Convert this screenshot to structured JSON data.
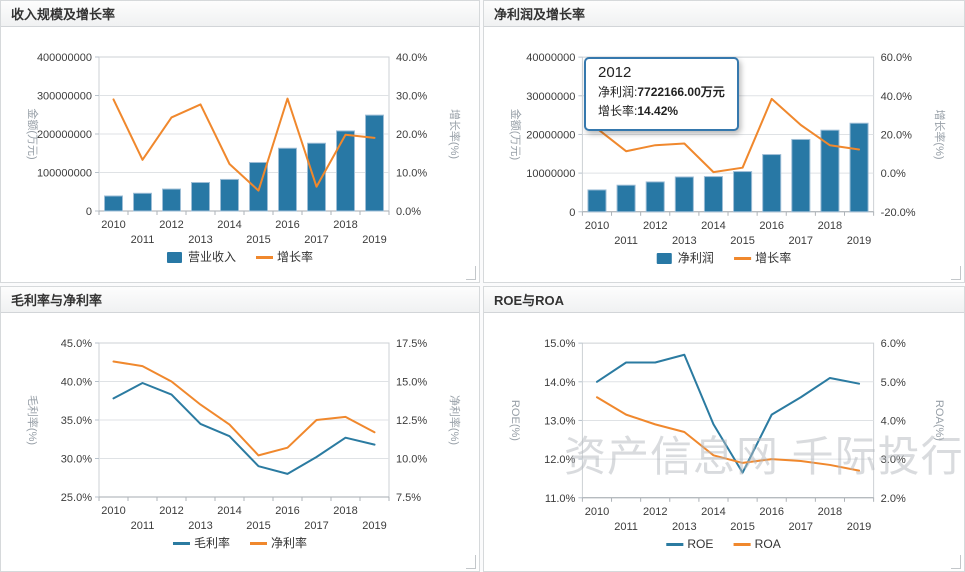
{
  "watermark": "资产信息网 千际投行",
  "colors": {
    "bar_blue": "#2878a5",
    "line_blue": "#2b7ba1",
    "line_orange": "#f0882d",
    "tooltip_border": "#3578ad"
  },
  "chart_data": [
    {
      "type": "combo",
      "title": "收入规模及增长率",
      "categories": [
        "2010",
        "2011",
        "2012",
        "2013",
        "2014",
        "2015",
        "2016",
        "2017",
        "2018",
        "2019"
      ],
      "left_axis": {
        "title": "金额(万元)",
        "min": 0,
        "max": 400000000,
        "tick_labels": [
          "0",
          "100000000",
          "200000000",
          "300000000",
          "400000000"
        ]
      },
      "right_axis": {
        "title": "增长率(%)",
        "min": 0,
        "max": 40,
        "tick_labels": [
          "0.0%",
          "10.0%",
          "20.0%",
          "30.0%",
          "40.0%"
        ]
      },
      "series": [
        {
          "name": "营业收入",
          "type": "bar",
          "axis": "left",
          "color": "#2878a5",
          "values": [
            39000000,
            46000000,
            57000000,
            74000000,
            82000000,
            126000000,
            163000000,
            176000000,
            208000000,
            249000000
          ]
        },
        {
          "name": "增长率",
          "type": "line",
          "axis": "right",
          "color": "#f0882d",
          "values": [
            29.0,
            13.3,
            24.3,
            27.7,
            12.2,
            5.3,
            29.2,
            6.3,
            19.8,
            19.0
          ]
        }
      ],
      "legend_position": "bottom",
      "grid": true
    },
    {
      "type": "combo",
      "title": "净利润及增长率",
      "categories": [
        "2010",
        "2011",
        "2012",
        "2013",
        "2014",
        "2015",
        "2016",
        "2017",
        "2018",
        "2019"
      ],
      "left_axis": {
        "title": "金额(万元)",
        "min": 0,
        "max": 40000000,
        "tick_labels": [
          "0",
          "10000000",
          "20000000",
          "30000000",
          "40000000"
        ]
      },
      "right_axis": {
        "title": "增长率(%)",
        "min": -20,
        "max": 60,
        "tick_labels": [
          "-20.0%",
          "0.0%",
          "20.0%",
          "40.0%",
          "60.0%"
        ]
      },
      "series": [
        {
          "name": "净利润",
          "type": "bar",
          "axis": "left",
          "color": "#2878a5",
          "values": [
            5650000,
            6870000,
            7722166,
            9000000,
            9100000,
            10400000,
            14800000,
            18700000,
            21100000,
            22900000
          ]
        },
        {
          "name": "增长率",
          "type": "line",
          "axis": "right",
          "color": "#f0882d",
          "values": [
            23.1,
            11.3,
            14.42,
            15.3,
            0.5,
            2.8,
            38.4,
            24.9,
            14.4,
            12.2
          ]
        }
      ],
      "tooltip": {
        "title": "2012",
        "rows": [
          {
            "label": "净利润:",
            "value": "7722166.00万元"
          },
          {
            "label": "增长率:",
            "value": "14.42%"
          }
        ]
      },
      "legend_position": "bottom",
      "grid": true
    },
    {
      "type": "line",
      "title": "毛利率与净利率",
      "categories": [
        "2010",
        "2011",
        "2012",
        "2013",
        "2014",
        "2015",
        "2016",
        "2017",
        "2018",
        "2019"
      ],
      "left_axis": {
        "title": "毛利率(%)",
        "min": 25,
        "max": 45,
        "tick_labels": [
          "25.0%",
          "30.0%",
          "35.0%",
          "40.0%",
          "45.0%"
        ]
      },
      "right_axis": {
        "title": "净利率(%)",
        "min": 7.5,
        "max": 17.5,
        "tick_labels": [
          "7.5%",
          "10.0%",
          "12.5%",
          "15.0%",
          "17.5%"
        ]
      },
      "series": [
        {
          "name": "毛利率",
          "type": "line",
          "axis": "left",
          "color": "#2b7ba1",
          "values": [
            37.8,
            39.8,
            38.3,
            34.5,
            32.9,
            29.0,
            28.0,
            30.2,
            32.7,
            31.8
          ]
        },
        {
          "name": "净利率",
          "type": "line",
          "axis": "right",
          "color": "#f0882d",
          "values": [
            16.3,
            16.0,
            15.0,
            13.5,
            12.2,
            10.2,
            10.7,
            12.5,
            12.7,
            11.7
          ]
        }
      ],
      "legend_position": "bottom",
      "grid": true
    },
    {
      "type": "line",
      "title": "ROE与ROA",
      "categories": [
        "2010",
        "2011",
        "2012",
        "2013",
        "2014",
        "2015",
        "2016",
        "2017",
        "2018",
        "2019"
      ],
      "left_axis": {
        "title": "ROE(%)",
        "min": 11,
        "max": 15,
        "tick_labels": [
          "11.0%",
          "12.0%",
          "13.0%",
          "14.0%",
          "15.0%"
        ]
      },
      "right_axis": {
        "title": "ROA(%)",
        "min": 2,
        "max": 6,
        "tick_labels": [
          "2.0%",
          "3.0%",
          "4.0%",
          "5.0%",
          "6.0%"
        ]
      },
      "series": [
        {
          "name": "ROE",
          "type": "line",
          "axis": "left",
          "color": "#2b7ba1",
          "values": [
            14.0,
            14.5,
            14.5,
            14.7,
            12.9,
            11.65,
            13.15,
            13.6,
            14.1,
            13.95
          ]
        },
        {
          "name": "ROA",
          "type": "line",
          "axis": "right",
          "color": "#f0882d",
          "values": [
            4.6,
            4.15,
            3.9,
            3.7,
            3.1,
            2.9,
            3.0,
            2.95,
            2.85,
            2.7
          ]
        }
      ],
      "legend_position": "bottom",
      "grid": true
    }
  ]
}
